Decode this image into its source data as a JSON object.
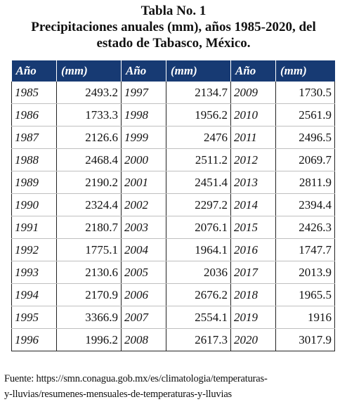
{
  "caption": {
    "line1": "Tabla No. 1",
    "line2": "Precipitaciones anuales (mm), años 1985-2020, del",
    "line3": "estado de Tabasco, México."
  },
  "headers": [
    "Año",
    "(mm)",
    "Año",
    "(mm)",
    "Año",
    "(mm)"
  ],
  "rows": [
    [
      "1985",
      "2493.2",
      "1997",
      "2134.7",
      "2009",
      "1730.5"
    ],
    [
      "1986",
      "1733.3",
      "1998",
      "1956.2",
      "2010",
      "2561.9"
    ],
    [
      "1987",
      "2126.6",
      "1999",
      "2476",
      "2011",
      "2496.5"
    ],
    [
      "1988",
      "2468.4",
      "2000",
      "2511.2",
      "2012",
      "2069.7"
    ],
    [
      "1989",
      "2190.2",
      "2001",
      "2451.4",
      "2013",
      "2811.9"
    ],
    [
      "1990",
      "2324.4",
      "2002",
      "2297.2",
      "2014",
      "2394.4"
    ],
    [
      "1991",
      "2180.7",
      "2003",
      "2076.1",
      "2015",
      "2426.3"
    ],
    [
      "1992",
      "1775.1",
      "2004",
      "1964.1",
      "2016",
      "1747.7"
    ],
    [
      "1993",
      "2130.6",
      "2005",
      "2036",
      "2017",
      "2013.9"
    ],
    [
      "1994",
      "2170.9",
      "2006",
      "2676.2",
      "2018",
      "1965.5"
    ],
    [
      "1995",
      "3366.9",
      "2007",
      "2554.1",
      "2019",
      "1916"
    ],
    [
      "1996",
      "1996.2",
      "2008",
      "2617.3",
      "2020",
      "3017.9"
    ]
  ],
  "source": {
    "line1": "Fuente: https://smn.conagua.gob.mx/es/climatologia/temperaturas-",
    "line2": "y-lluvias/resumenes-mensuales-de-temperaturas-y-lluvias"
  },
  "colors": {
    "header_bg": "#173a73",
    "header_text": "#ffffff"
  }
}
